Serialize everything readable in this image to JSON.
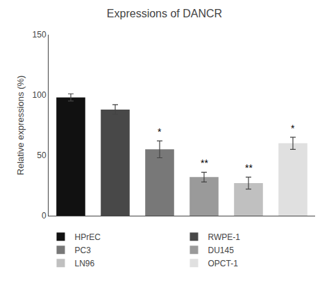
{
  "chart_data": {
    "type": "bar",
    "title": "Expressions of DANCR",
    "ylabel": "Relative expressions (%)",
    "categories": [
      "HPrEC",
      "RWPE-1",
      "PC3",
      "DU145",
      "LN96",
      "OPCT-1"
    ],
    "values": [
      98,
      88,
      55,
      32,
      27,
      60
    ],
    "errors": [
      3,
      4,
      7,
      4,
      5,
      5
    ],
    "colors": [
      "#111111",
      "#484848",
      "#787878",
      "#9a9a9a",
      "#c0c0c0",
      "#e0e0e0"
    ],
    "annotations": [
      {
        "category": "PC3",
        "text": "*"
      },
      {
        "category": "DU145",
        "text": "**"
      },
      {
        "category": "LN96",
        "text": "**"
      },
      {
        "category": "OPCT-1",
        "text": "*"
      }
    ],
    "ylim": [
      0,
      150
    ],
    "yticks": [
      0,
      50,
      100,
      150
    ],
    "grid": false,
    "legend": "bottom",
    "tick_labels": "y"
  }
}
